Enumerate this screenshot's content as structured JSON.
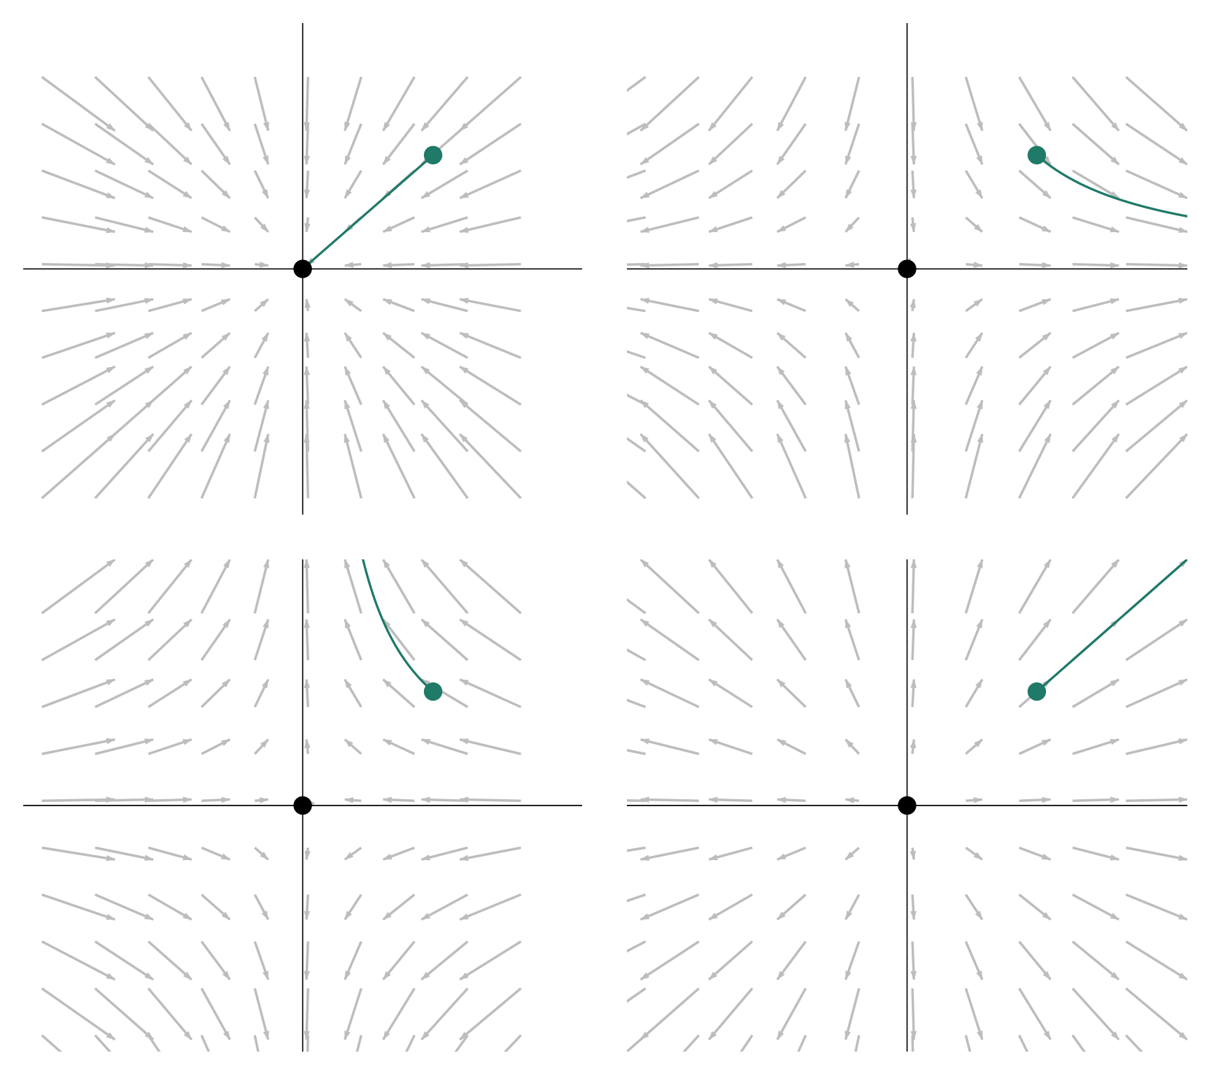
{
  "chart_data": [
    {
      "type": "quiver",
      "matrix": [
        [
          -1,
          0
        ],
        [
          0,
          -1
        ]
      ],
      "xgrid": [
        -4.9,
        -3.9,
        -2.9,
        -1.9,
        -0.9,
        0.1,
        1.1,
        2.1,
        3.1,
        4.1
      ],
      "ygrid": [
        4.1,
        3.1,
        2.1,
        1.1,
        0.1,
        -0.9,
        -1.9,
        -2.9,
        -3.9,
        -4.9
      ],
      "xlim": [
        -5.25,
        5.25
      ],
      "ylim": [
        -5.25,
        5.25
      ],
      "start": [
        2.45,
        2.43
      ],
      "fixed_point": [
        0,
        0
      ],
      "arrow_color": "#bdbdbd",
      "trajectory_color": "#1f7a68"
    },
    {
      "type": "quiver",
      "matrix": [
        [
          1,
          0
        ],
        [
          0,
          -1
        ]
      ],
      "xgrid": [
        -4.9,
        -3.9,
        -2.9,
        -1.9,
        -0.9,
        0.1,
        1.1,
        2.1,
        3.1,
        4.1
      ],
      "ygrid": [
        4.1,
        3.1,
        2.1,
        1.1,
        0.1,
        -0.9,
        -1.9,
        -2.9,
        -3.9,
        -4.9
      ],
      "xlim": [
        -5.25,
        5.25
      ],
      "ylim": [
        -5.25,
        5.25
      ],
      "start": [
        2.43,
        2.43
      ],
      "fixed_point": [
        0,
        0
      ],
      "arrow_color": "#bdbdbd",
      "trajectory_color": "#1f7a68"
    },
    {
      "type": "quiver",
      "matrix": [
        [
          -1,
          0
        ],
        [
          0,
          1
        ]
      ],
      "xgrid": [
        -4.9,
        -3.9,
        -2.9,
        -1.9,
        -0.9,
        0.1,
        1.1,
        2.1,
        3.1,
        4.1
      ],
      "ygrid": [
        4.1,
        3.1,
        2.1,
        1.1,
        0.1,
        -0.9,
        -1.9,
        -2.9,
        -3.9,
        -4.9
      ],
      "xlim": [
        -5.25,
        5.25
      ],
      "ylim": [
        -5.25,
        5.25
      ],
      "start": [
        2.45,
        2.43
      ],
      "fixed_point": [
        0,
        0
      ],
      "arrow_color": "#bdbdbd",
      "trajectory_color": "#1f7a68"
    },
    {
      "type": "quiver",
      "matrix": [
        [
          1,
          0
        ],
        [
          0,
          1
        ]
      ],
      "xgrid": [
        -4.9,
        -3.9,
        -2.9,
        -1.9,
        -0.9,
        0.1,
        1.1,
        2.1,
        3.1,
        4.1
      ],
      "ygrid": [
        4.1,
        3.1,
        2.1,
        1.1,
        0.1,
        -0.9,
        -1.9,
        -2.9,
        -3.9,
        -4.9
      ],
      "xlim": [
        -5.25,
        5.25
      ],
      "ylim": [
        -5.25,
        5.25
      ],
      "start": [
        2.43,
        2.43
      ],
      "fixed_point": [
        0,
        0
      ],
      "arrow_color": "#bdbdbd",
      "trajectory_color": "#1f7a68"
    }
  ]
}
